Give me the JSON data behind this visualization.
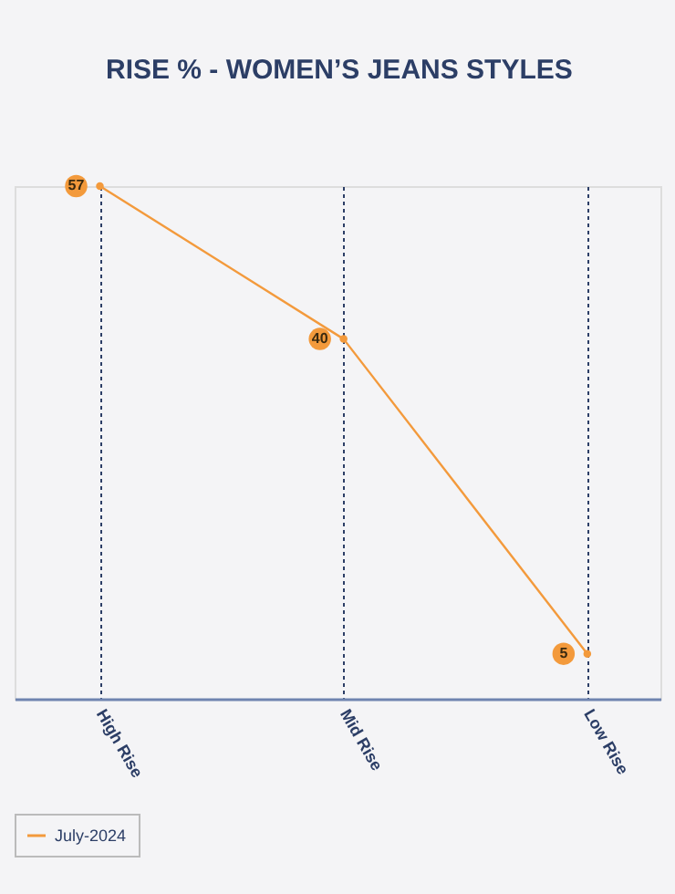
{
  "chart_data": {
    "type": "line",
    "title": "RISE % - WOMEN’S JEANS STYLES",
    "categories": [
      "High Rise",
      "Mid Rise",
      "Low Rise"
    ],
    "series": [
      {
        "name": "July-2024",
        "color": "#f39a3c",
        "values": [
          57,
          40,
          5
        ]
      }
    ],
    "data_labels": true,
    "grid": "x",
    "legend": "bottom",
    "marker": "circle",
    "line_style": "solid",
    "tick_labels": "x"
  }
}
